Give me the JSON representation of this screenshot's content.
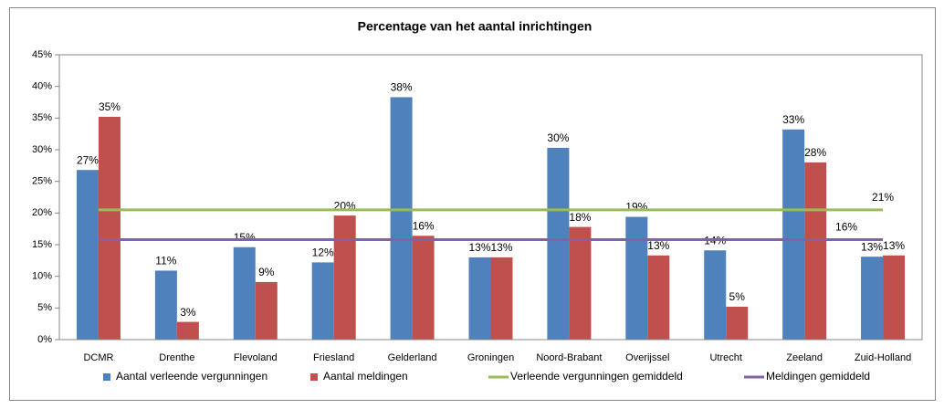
{
  "chart_data": {
    "type": "bar",
    "title": "Percentage van het aantal inrichtingen",
    "categories": [
      "DCMR",
      "Drenthe",
      "Flevoland",
      "Friesland",
      "Gelderland",
      "Groningen",
      "Noord-Brabant",
      "Overijssel",
      "Utrecht",
      "Zeeland",
      "Zuid-Holland"
    ],
    "series": [
      {
        "name": "Aantal verleende vergunningen",
        "type": "bar",
        "color": "#4f81bd",
        "values": [
          26.8,
          10.9,
          14.6,
          12.2,
          38.3,
          13,
          30.3,
          19.4,
          14.1,
          33.2,
          13.1
        ],
        "value_labels": [
          "27%",
          "11%",
          "15%",
          "12%",
          "38%",
          "13%",
          "30%",
          "19%",
          "14%",
          "33%",
          "13%"
        ]
      },
      {
        "name": "Aantal meldingen",
        "type": "bar",
        "color": "#c0504d",
        "values": [
          35.2,
          2.8,
          9.1,
          19.6,
          16.4,
          13,
          17.8,
          13.3,
          5.2,
          28,
          13.3
        ],
        "value_labels": [
          "35%",
          "3%",
          "9%",
          "20%",
          "16%",
          "13%",
          "18%",
          "13%",
          "5%",
          "28%",
          "13%"
        ]
      },
      {
        "name": "Verleende vergunningen gemiddeld",
        "type": "line",
        "color": "#9bbb59",
        "values": [
          20.5,
          20.5,
          20.5,
          20.5,
          20.5,
          20.5,
          20.5,
          20.5,
          20.5,
          20.5,
          20.5
        ],
        "value_labels": [
          null,
          null,
          null,
          null,
          null,
          null,
          null,
          null,
          null,
          null,
          "21%"
        ]
      },
      {
        "name": "Meldingen gemiddeld",
        "type": "line",
        "color": "#8064a2",
        "values": [
          15.8,
          15.8,
          15.8,
          15.8,
          15.8,
          15.8,
          15.8,
          15.8,
          15.8,
          15.8,
          15.8
        ],
        "value_labels": [
          null,
          null,
          null,
          null,
          null,
          null,
          null,
          null,
          null,
          null,
          "16%"
        ]
      }
    ],
    "ylim": [
      0,
      45
    ],
    "yticks": [
      {
        "value": 0,
        "label": "0%"
      },
      {
        "value": 5,
        "label": "5%"
      },
      {
        "value": 10,
        "label": "10%"
      },
      {
        "value": 15,
        "label": "15%"
      },
      {
        "value": 20,
        "label": "20%"
      },
      {
        "value": 25,
        "label": "25%"
      },
      {
        "value": 30,
        "label": "30%"
      },
      {
        "value": 35,
        "label": "35%"
      },
      {
        "value": 40,
        "label": "40%"
      },
      {
        "value": 45,
        "label": "45%"
      }
    ],
    "legend": "bottom"
  }
}
